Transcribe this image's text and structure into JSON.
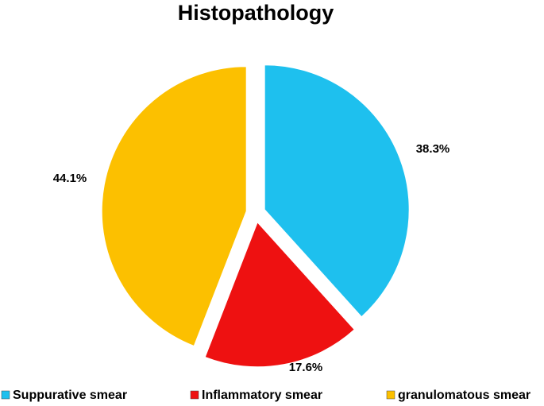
{
  "chart_data": {
    "type": "pie",
    "title": "Histopathology",
    "categories": [
      "Suppurative smear",
      "Inflammatory smear",
      "granulomatous smear"
    ],
    "values": [
      38.3,
      17.6,
      44.1
    ],
    "value_labels": [
      "38.3%",
      "17.6%",
      "44.1%"
    ],
    "colors": [
      "#1ec0ee",
      "#ee1111",
      "#fcc000"
    ],
    "legend": "bottom"
  }
}
